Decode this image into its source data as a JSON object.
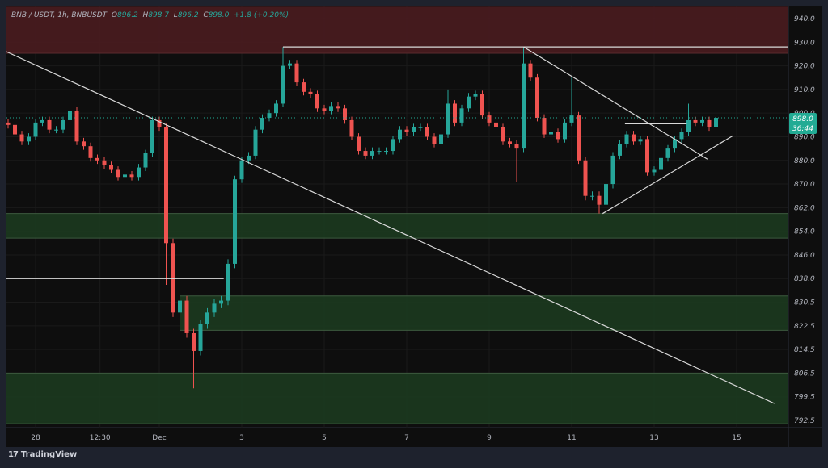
{
  "legend": {
    "symbol": "BNB / USDT, 1h, BNBUSDT",
    "open_label": "O",
    "open": "896.2",
    "high_label": "H",
    "high": "898.7",
    "low_label": "L",
    "low": "896.2",
    "close_label": "C",
    "close": "898.0",
    "change": "+1.8 (+0.20%)"
  },
  "branding": {
    "logo_text": "TradingView"
  },
  "chart_data": {
    "type": "candlestick",
    "title": "BNB / USDT, 1h, BNBUSDT",
    "candle_interval": "4h",
    "start_time": "11-27 08:00",
    "closes": [
      895,
      891,
      888,
      890,
      896,
      897,
      893,
      893,
      897,
      901,
      888,
      886,
      881,
      880,
      878,
      876,
      873,
      874,
      873,
      877,
      883,
      897,
      894,
      850,
      827,
      831,
      820,
      814,
      823,
      827,
      830,
      831,
      843,
      872,
      880,
      882,
      893,
      898,
      900,
      904,
      920,
      921,
      913,
      909,
      908,
      902,
      901,
      903,
      902,
      897,
      890,
      884,
      882,
      884,
      884,
      884,
      889,
      893,
      892,
      894,
      894,
      890,
      887,
      891,
      904,
      896,
      902,
      907,
      908,
      899,
      896,
      894,
      888,
      887,
      885,
      921,
      915,
      898,
      891,
      892,
      889,
      896,
      899,
      880,
      866,
      866,
      863,
      870,
      882,
      887,
      891,
      888,
      889,
      875,
      876,
      881,
      885,
      889,
      892,
      897,
      896,
      897,
      894,
      898
    ],
    "wick_extremes": [
      {
        "index": 9,
        "high": 906
      },
      {
        "index": 23,
        "low": 836
      },
      {
        "index": 27,
        "low": 802
      },
      {
        "index": 40,
        "high": 928
      },
      {
        "index": 64,
        "high": 910
      },
      {
        "index": 74,
        "low": 871
      },
      {
        "index": 75,
        "high": 928
      },
      {
        "index": 82,
        "high": 915
      },
      {
        "index": 86,
        "low": 860
      },
      {
        "index": 99,
        "high": 904
      }
    ],
    "colors": {
      "up": "#26a69a",
      "down": "#ef5350"
    },
    "y_ticks": [
      940.0,
      930.0,
      920.0,
      910.0,
      900.0,
      890.0,
      880.0,
      870.0,
      862.0,
      854.0,
      846.0,
      838.0,
      830.5,
      822.5,
      814.5,
      806.5,
      799.5,
      792.5
    ],
    "x_ticks": [
      {
        "label": "28",
        "time": "11-28 00:00"
      },
      {
        "label": "12:30",
        "time": "11-29 13:30"
      },
      {
        "label": "Dec",
        "time": "12-01 00:00"
      },
      {
        "label": "3",
        "time": "12-03 00:00"
      },
      {
        "label": "5",
        "time": "12-05 00:00"
      },
      {
        "label": "7",
        "time": "12-07 00:00"
      },
      {
        "label": "9",
        "time": "12-09 00:00"
      },
      {
        "label": "11",
        "time": "12-11 00:00"
      },
      {
        "label": "13",
        "time": "12-13 00:00"
      },
      {
        "label": "15",
        "time": "12-15 00:00"
      }
    ],
    "last_price": {
      "price": "898.0",
      "countdown": "36:44",
      "value": 898.0,
      "color": "#22ab94"
    },
    "zones": [
      {
        "kind": "supply",
        "from": 945,
        "to": 925.3,
        "start": "11-27 07:00",
        "color": "#4a1c1f"
      },
      {
        "kind": "demand",
        "from": 860,
        "to": 851.7,
        "start": "11-27 07:00",
        "color": "#1c3a1f"
      },
      {
        "kind": "demand",
        "from": 832.5,
        "to": 821,
        "start": "12-01 12:00",
        "color": "#1c3a1f"
      },
      {
        "kind": "demand",
        "from": 806.5,
        "to": 791.5,
        "start": "11-27 07:00",
        "color": "#1c3a1f"
      }
    ],
    "lines": [
      {
        "name": "descending-trendline",
        "t1": "11-27 07:00",
        "p1": 926,
        "t2": "12-15 22:00",
        "p2": 797.5
      },
      {
        "name": "resistance-928",
        "t1": "12-04 00:00",
        "p1": 928,
        "t2": "end",
        "p2": 928
      },
      {
        "name": "level-838",
        "t1": "11-27 07:00",
        "p1": 838,
        "t2": "12-02 13:30",
        "p2": 838
      },
      {
        "name": "triangle-upper",
        "t1": "12-09 20:00",
        "p1": 928,
        "t2": "12-14 07:00",
        "p2": 880.5
      },
      {
        "name": "triangle-lower",
        "t1": "12-11 18:00",
        "p1": 860,
        "t2": "12-14 22:00",
        "p2": 890.5
      },
      {
        "name": "level-895",
        "t1": "12-12 07:00",
        "p1": 895.5,
        "t2": "12-13 19:00",
        "p2": 895.5
      }
    ]
  }
}
